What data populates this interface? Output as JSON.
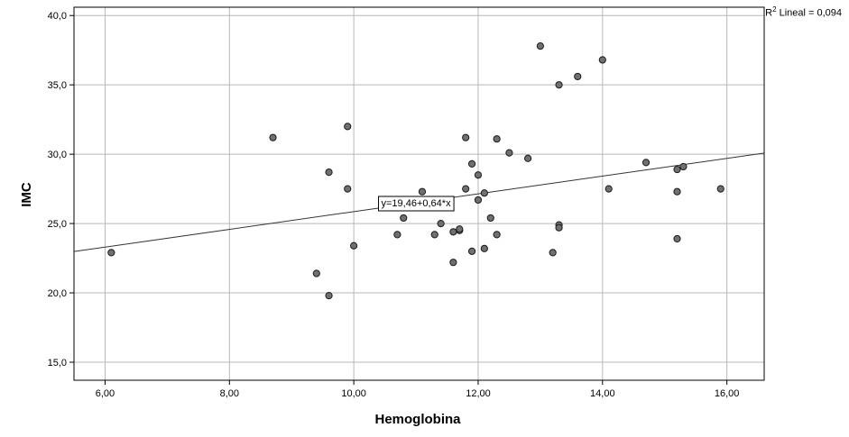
{
  "chart_data": {
    "type": "scatter",
    "xlabel": "Hemoglobina",
    "ylabel": "IMC",
    "xlim": [
      5.5,
      16.6
    ],
    "ylim": [
      13.7,
      40.6
    ],
    "xticks": [
      6,
      8,
      10,
      12,
      14,
      16
    ],
    "xtick_labels": [
      "6,00",
      "8,00",
      "10,00",
      "12,00",
      "14,00",
      "16,00"
    ],
    "yticks": [
      15,
      20,
      25,
      30,
      35,
      40
    ],
    "ytick_labels": [
      "15,0",
      "20,0",
      "25,0",
      "30,0",
      "35,0",
      "40,0"
    ],
    "grid": true,
    "fit_line": {
      "intercept": 19.46,
      "slope": 0.64,
      "label": "y=19,46+0,64*x",
      "label_anchor_x": 11.0
    },
    "r2": {
      "label": "R",
      "sup": "2",
      "text": " Lineal = 0,094"
    },
    "marker_color": "#707070",
    "points": [
      [
        6.1,
        22.9
      ],
      [
        8.7,
        31.2
      ],
      [
        9.4,
        21.4
      ],
      [
        9.6,
        28.7
      ],
      [
        9.6,
        19.8
      ],
      [
        9.9,
        32.0
      ],
      [
        9.9,
        27.5
      ],
      [
        10.0,
        23.4
      ],
      [
        10.7,
        24.2
      ],
      [
        10.8,
        25.4
      ],
      [
        11.1,
        27.3
      ],
      [
        11.3,
        24.2
      ],
      [
        11.4,
        25.0
      ],
      [
        11.6,
        22.2
      ],
      [
        11.6,
        24.4
      ],
      [
        11.7,
        24.5
      ],
      [
        11.7,
        24.6
      ],
      [
        11.8,
        31.2
      ],
      [
        11.8,
        27.5
      ],
      [
        11.9,
        29.3
      ],
      [
        11.9,
        23.0
      ],
      [
        12.0,
        28.5
      ],
      [
        12.0,
        26.7
      ],
      [
        12.1,
        27.2
      ],
      [
        12.1,
        23.2
      ],
      [
        12.2,
        25.4
      ],
      [
        12.3,
        31.1
      ],
      [
        12.3,
        24.2
      ],
      [
        12.5,
        30.1
      ],
      [
        12.8,
        29.7
      ],
      [
        13.0,
        37.8
      ],
      [
        13.2,
        22.9
      ],
      [
        13.3,
        35.0
      ],
      [
        13.3,
        24.9
      ],
      [
        13.3,
        24.7
      ],
      [
        13.6,
        35.6
      ],
      [
        14.0,
        36.8
      ],
      [
        14.1,
        27.5
      ],
      [
        14.7,
        29.4
      ],
      [
        15.2,
        28.9
      ],
      [
        15.2,
        27.3
      ],
      [
        15.2,
        23.9
      ],
      [
        15.3,
        29.1
      ],
      [
        15.9,
        27.5
      ]
    ]
  }
}
